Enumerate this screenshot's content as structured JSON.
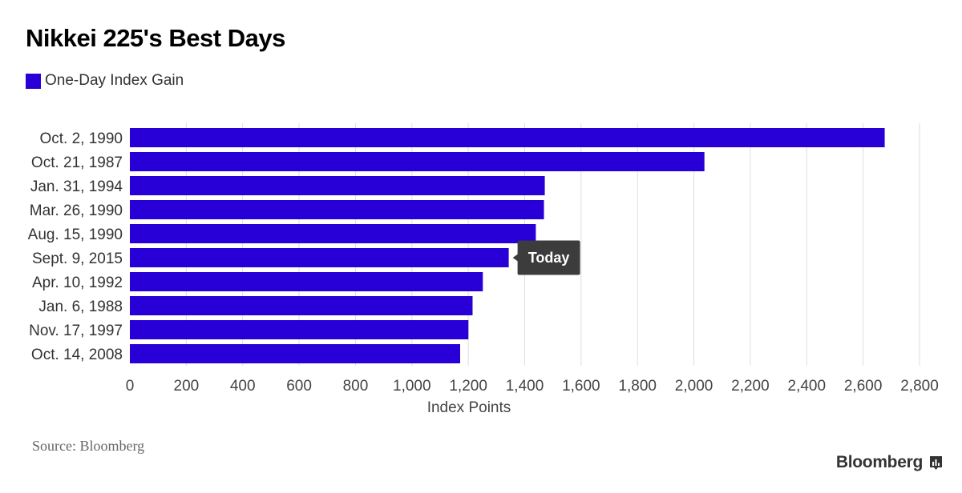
{
  "title": "Nikkei 225's Best Days",
  "legend": {
    "label": "One-Day Index Gain",
    "color": "#2800d7"
  },
  "source": "Source: Bloomberg",
  "brand": "Bloomberg",
  "chart_data": {
    "type": "bar",
    "orientation": "horizontal",
    "categories": [
      "Oct. 2, 1990",
      "Oct. 21, 1987",
      "Jan. 31, 1994",
      "Mar. 26, 1990",
      "Aug. 15, 1990",
      "Sept. 9, 2015",
      "Apr. 10, 1992",
      "Jan. 6, 1988",
      "Nov. 17, 1997",
      "Oct. 14, 2008"
    ],
    "series": [
      {
        "name": "One-Day Index Gain",
        "color": "#2800d7",
        "values": [
          2676.55,
          2037.32,
          1471.24,
          1468.33,
          1439.5,
          1343.43,
          1251.58,
          1215.18,
          1200.38,
          1171.14
        ]
      }
    ],
    "xlabel": "Index Points",
    "xlim": [
      0,
      2800
    ],
    "xticks": [
      0,
      200,
      400,
      600,
      800,
      1000,
      1200,
      1400,
      1600,
      1800,
      2000,
      2200,
      2400,
      2600,
      2800
    ],
    "xtick_labels": [
      "0",
      "200",
      "400",
      "600",
      "800",
      "1,000",
      "1,200",
      "1,400",
      "1,600",
      "1,800",
      "2,000",
      "2,200",
      "2,400",
      "2,600",
      "2,800"
    ],
    "grid": "vertical",
    "annotation": {
      "category": "Sept. 9, 2015",
      "text": "Today"
    }
  }
}
